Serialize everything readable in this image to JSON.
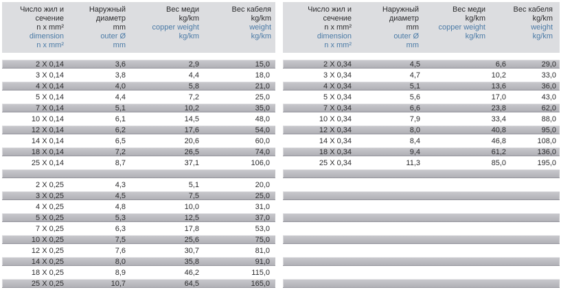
{
  "page": {
    "type": "cable-specification-tables"
  },
  "colors": {
    "header_bg": "#dcdde0",
    "row_bar_gray": "#b2b2b8",
    "text_black": "#2a2a2c",
    "accent_blue": "#4a7aa6"
  },
  "cell_semantics": [
    "cell-dimension",
    "cell-outer-diameter",
    "cell-copper-weight",
    "cell-cable-weight"
  ],
  "tables": [
    {
      "name": "table-0-14-and-0-25",
      "header": [
        {
          "ru": [
            "Число жил и",
            "сечение",
            "n x mm²"
          ],
          "en": [
            "dimension",
            "n x mm²"
          ]
        },
        {
          "ru": [
            "Наружный",
            "диаметр",
            "mm"
          ],
          "en": [
            "outer Ø",
            "mm"
          ]
        },
        {
          "ru": [
            "Вес меди",
            "kg/km"
          ],
          "en": [
            "copper weight",
            "kg/km"
          ]
        },
        {
          "ru": [
            "Вес кабеля",
            "kg/km"
          ],
          "en": [
            "weight",
            "kg/km"
          ]
        }
      ],
      "sections": [
        {
          "rows": [
            [
              "2 X 0,14",
              "3,6",
              "2,9",
              "15,0"
            ],
            [
              "3 X 0,14",
              "3,8",
              "4,4",
              "18,0"
            ],
            [
              "4 X 0,14",
              "4,0",
              "5,8",
              "21,0"
            ],
            [
              "5 X 0,14",
              "4,4",
              "7,2",
              "25,0"
            ],
            [
              "7 X 0,14",
              "5,1",
              "10,2",
              "35,0"
            ],
            [
              "10 X 0,14",
              "6,1",
              "14,5",
              "48,0"
            ],
            [
              "12 X 0,14",
              "6,2",
              "17,6",
              "54,0"
            ],
            [
              "14 X 0,14",
              "6,5",
              "20,6",
              "60,0"
            ],
            [
              "18 X 0,14",
              "7,2",
              "26,5",
              "74,0"
            ],
            [
              "25 X 0,14",
              "8,7",
              "37,1",
              "106,0"
            ]
          ]
        },
        {
          "rows": [
            [
              "2 X 0,25",
              "4,3",
              "5,1",
              "20,0"
            ],
            [
              "3 X 0,25",
              "4,5",
              "7,5",
              "25,0"
            ],
            [
              "4 X 0,25",
              "4,8",
              "10,0",
              "31,0"
            ],
            [
              "5 X 0,25",
              "5,3",
              "12,5",
              "37,0"
            ],
            [
              "7 X 0,25",
              "6,3",
              "17,8",
              "53,0"
            ],
            [
              "10 X 0,25",
              "7,5",
              "25,6",
              "75,0"
            ],
            [
              "12 X 0,25",
              "7,6",
              "30,7",
              "81,0"
            ],
            [
              "14 X 0,25",
              "8,0",
              "35,8",
              "91,0"
            ],
            [
              "18 X 0,25",
              "8,9",
              "46,2",
              "115,0"
            ],
            [
              "25 X 0,25",
              "10,7",
              "64,5",
              "165,0"
            ]
          ]
        }
      ],
      "trailing_empty_slots": 0
    },
    {
      "name": "table-0-34",
      "header": [
        {
          "ru": [
            "Число жил и",
            "сечение",
            "n x mm²"
          ],
          "en": [
            "dimension",
            "n x mm²"
          ]
        },
        {
          "ru": [
            "Наружный",
            "диаметр",
            "mm"
          ],
          "en": [
            "outer Ø",
            "mm"
          ]
        },
        {
          "ru": [
            "Вес меди",
            "kg/km"
          ],
          "en": [
            "copper weight",
            "kg/km"
          ]
        },
        {
          "ru": [
            "Вес кабеля",
            "kg/km"
          ],
          "en": [
            "weight",
            "kg/km"
          ]
        }
      ],
      "sections": [
        {
          "rows": [
            [
              "2 X 0,34",
              "4,5",
              "6,6",
              "29,0"
            ],
            [
              "3 X 0,34",
              "4,7",
              "10,2",
              "33,0"
            ],
            [
              "4 X 0,34",
              "5,1",
              "13,6",
              "36,0"
            ],
            [
              "5 X 0,34",
              "5,6",
              "17,0",
              "43,0"
            ],
            [
              "7 X 0,34",
              "6,6",
              "23,8",
              "62,0"
            ],
            [
              "10 X 0,34",
              "7,9",
              "33,4",
              "88,0"
            ],
            [
              "12 X 0,34",
              "8,0",
              "40,8",
              "95,0"
            ],
            [
              "14 X 0,34",
              "8,4",
              "46,8",
              "108,0"
            ],
            [
              "18 X 0,34",
              "9,4",
              "61,2",
              "136,0"
            ],
            [
              "25 X 0,34",
              "11,3",
              "85,0",
              "195,0"
            ]
          ]
        }
      ],
      "trailing_empty_slots": 11
    }
  ]
}
